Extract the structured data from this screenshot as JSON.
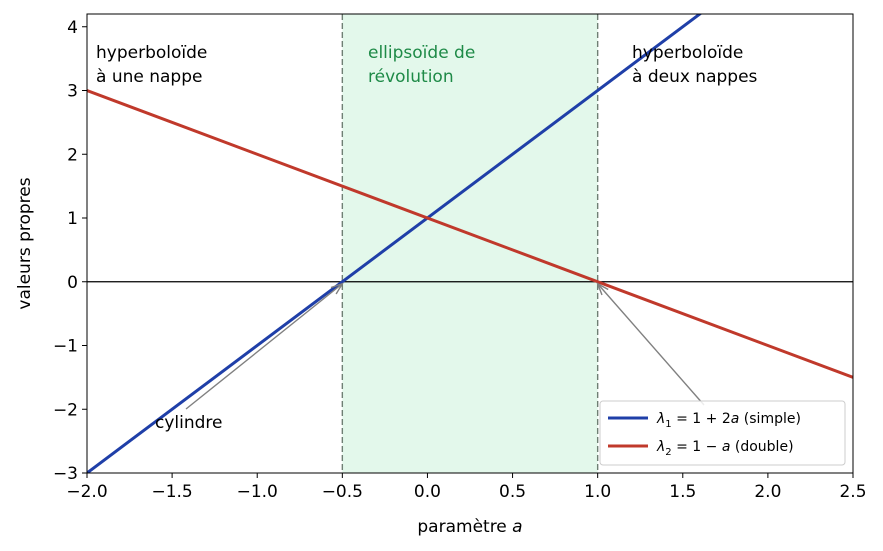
{
  "chart_data": {
    "type": "line",
    "xlabel": "paramètre a",
    "ylabel": "valeurs propres",
    "xlim": [
      -2.0,
      2.5
    ],
    "ylim": [
      -3,
      4.2
    ],
    "xticks": [
      -2.0,
      -1.5,
      -1.0,
      -0.5,
      0.0,
      0.5,
      1.0,
      1.5,
      2.0,
      2.5
    ],
    "xtick_labels": [
      "−2.0",
      "−1.5",
      "−1.0",
      "−0.5",
      "0.0",
      "0.5",
      "1.0",
      "1.5",
      "2.0",
      "2.5"
    ],
    "yticks": [
      -3,
      -2,
      -1,
      0,
      1,
      2,
      3,
      4
    ],
    "ytick_labels": [
      "−3",
      "−2",
      "−1",
      "0",
      "1",
      "2",
      "3",
      "4"
    ],
    "grid": false,
    "legend_position": "lower-right",
    "series": [
      {
        "name": "λ₁ = 1 + 2a (simple)",
        "legend_main": "λ",
        "legend_sub": "1",
        "legend_rest": " = 1 + 2",
        "legend_var": "a",
        "legend_tail": " (simple)",
        "x": [
          -2.0,
          2.5
        ],
        "y": [
          -3.0,
          6.0
        ],
        "color": "#1f3fa8"
      },
      {
        "name": "λ₂ = 1 − a (double)",
        "legend_main": "λ",
        "legend_sub": "2",
        "legend_rest": " = 1 − ",
        "legend_var": "a",
        "legend_tail": " (double)",
        "x": [
          -2.0,
          2.5
        ],
        "y": [
          3.0,
          -1.5
        ],
        "color": "#c0392b"
      }
    ],
    "shaded_region": {
      "x": [
        -0.5,
        1.0
      ],
      "color": "#e3f8eb"
    },
    "vlines": [
      -0.5,
      1.0
    ],
    "hline": 0,
    "region_labels": [
      {
        "lines": [
          "hyperboloïde",
          "à une nappe"
        ],
        "color": "#000000"
      },
      {
        "lines": [
          "ellipsoïde de",
          "révolution"
        ],
        "color": "#1e8a47"
      },
      {
        "lines": [
          "hyperboloïde",
          "à deux nappes"
        ],
        "color": "#000000"
      }
    ],
    "annotation": {
      "text": "cylindre",
      "points_to": [
        [
          -0.5,
          0
        ],
        [
          1.0,
          0
        ]
      ]
    }
  }
}
